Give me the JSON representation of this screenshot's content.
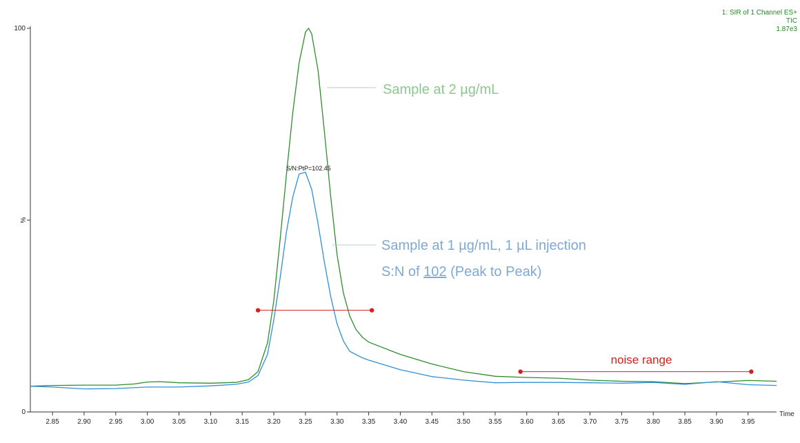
{
  "chart_data": {
    "type": "line",
    "header": [
      "1: SIR of 1 Channel ES+",
      "TIC",
      "1.87e3"
    ],
    "xlabel": "Time",
    "ylabel": "%",
    "xlim": [
      2.815,
      3.995
    ],
    "ylim": [
      0,
      100
    ],
    "x_ticks": [
      2.85,
      2.9,
      2.95,
      3.0,
      3.05,
      3.1,
      3.15,
      3.2,
      3.25,
      3.3,
      3.35,
      3.4,
      3.45,
      3.5,
      3.55,
      3.6,
      3.65,
      3.7,
      3.75,
      3.8,
      3.85,
      3.9,
      3.95
    ],
    "x_tick_labels": [
      "2.85",
      "2.90",
      "2.95",
      "3.00",
      "3.05",
      "3.10",
      "3.15",
      "3.20",
      "3.25",
      "3.30",
      "3.35",
      "3.40",
      "3.45",
      "3.50",
      "3.55",
      "3.60",
      "3.65",
      "3.70",
      "3.75",
      "3.80",
      "3.85",
      "3.90",
      "3.95"
    ],
    "y_tick_labels": {
      "top": "100",
      "bottom": "0"
    },
    "grid": false,
    "series": [
      {
        "color": "#2e8b2e",
        "points": [
          [
            2.81,
            6.7
          ],
          [
            2.85,
            6.9
          ],
          [
            2.9,
            7.0
          ],
          [
            2.95,
            7.0
          ],
          [
            2.98,
            7.3
          ],
          [
            3.0,
            7.8
          ],
          [
            3.02,
            7.9
          ],
          [
            3.05,
            7.6
          ],
          [
            3.1,
            7.5
          ],
          [
            3.14,
            7.7
          ],
          [
            3.16,
            8.4
          ],
          [
            3.175,
            10.5
          ],
          [
            3.19,
            18
          ],
          [
            3.2,
            29
          ],
          [
            3.21,
            45
          ],
          [
            3.22,
            62
          ],
          [
            3.23,
            78
          ],
          [
            3.24,
            91
          ],
          [
            3.25,
            99
          ],
          [
            3.255,
            100
          ],
          [
            3.26,
            98.5
          ],
          [
            3.27,
            89
          ],
          [
            3.28,
            73
          ],
          [
            3.29,
            56
          ],
          [
            3.3,
            41
          ],
          [
            3.31,
            31
          ],
          [
            3.32,
            25
          ],
          [
            3.33,
            21.5
          ],
          [
            3.34,
            19.5
          ],
          [
            3.35,
            18.2
          ],
          [
            3.4,
            15
          ],
          [
            3.45,
            12.5
          ],
          [
            3.5,
            10.5
          ],
          [
            3.55,
            9.3
          ],
          [
            3.6,
            9.0
          ],
          [
            3.65,
            8.8
          ],
          [
            3.7,
            8.3
          ],
          [
            3.75,
            8.0
          ],
          [
            3.8,
            7.9
          ],
          [
            3.85,
            7.4
          ],
          [
            3.9,
            7.8
          ],
          [
            3.95,
            8.2
          ],
          [
            4.0,
            8.0
          ]
        ]
      },
      {
        "color": "#2f8fd8",
        "points": [
          [
            2.81,
            6.7
          ],
          [
            2.85,
            6.5
          ],
          [
            2.9,
            6.0
          ],
          [
            2.95,
            6.1
          ],
          [
            3.0,
            6.5
          ],
          [
            3.05,
            6.5
          ],
          [
            3.1,
            6.8
          ],
          [
            3.14,
            7.2
          ],
          [
            3.16,
            7.8
          ],
          [
            3.175,
            9.5
          ],
          [
            3.19,
            15
          ],
          [
            3.2,
            24
          ],
          [
            3.21,
            35
          ],
          [
            3.22,
            47
          ],
          [
            3.23,
            56
          ],
          [
            3.24,
            62
          ],
          [
            3.25,
            62.5
          ],
          [
            3.26,
            58
          ],
          [
            3.27,
            49
          ],
          [
            3.28,
            39
          ],
          [
            3.29,
            30
          ],
          [
            3.3,
            23
          ],
          [
            3.31,
            18.5
          ],
          [
            3.32,
            15.8
          ],
          [
            3.34,
            14.1
          ],
          [
            3.35,
            13.5
          ],
          [
            3.4,
            11
          ],
          [
            3.45,
            9.2
          ],
          [
            3.5,
            8.3
          ],
          [
            3.55,
            7.6
          ],
          [
            3.6,
            7.7
          ],
          [
            3.65,
            7.7
          ],
          [
            3.7,
            7.6
          ],
          [
            3.75,
            7.5
          ],
          [
            3.8,
            7.7
          ],
          [
            3.85,
            7.2
          ],
          [
            3.9,
            7.9
          ],
          [
            3.95,
            7.1
          ],
          [
            4.0,
            6.9
          ]
        ]
      }
    ],
    "annotations": {
      "peak_label": "S/N:PtP=102.45",
      "green_label": "Sample at 2 µg/mL",
      "blue_label_line1": "Sample at 1 µg/mL, 1 µL injection",
      "blue_label_line2_prefix": "S:N of ",
      "blue_label_line2_value": "102",
      "blue_label_line2_suffix": " (Peak to Peak)",
      "noise_label": "noise range",
      "noise_range": [
        3.59,
        3.955
      ],
      "peak_width_range": [
        3.175,
        3.355
      ],
      "peak_width_level": 26.5,
      "noise_level": 10.5
    },
    "colors": {
      "green_text": "#8cc98c",
      "blue_text": "#7ea9d6",
      "red": "#d42020",
      "header": "#1f8a1f"
    }
  }
}
